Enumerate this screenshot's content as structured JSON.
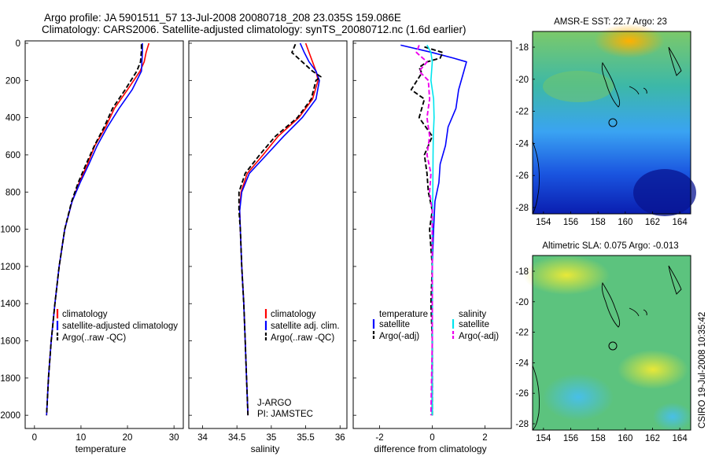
{
  "title": {
    "line1": "Argo profile: JA 5901511_57 13-Jul-2008 20080718_208 23.035S 159.086E",
    "line2": "Climatology: CARS2006. Satellite-adjusted climatology: synTS_20080712.nc (1.6d earlier)"
  },
  "colors": {
    "climatology": "#ff0000",
    "satellite": "#0000ff",
    "argo": "#000000",
    "sat_salinity": "#00e5ee",
    "argo_salinity": "#ee00ee"
  },
  "depth_axis": {
    "ylim": [
      0,
      2050
    ],
    "ticks": [
      "0",
      "200",
      "400",
      "600",
      "800",
      "1000",
      "1200",
      "1400",
      "1600",
      "1800",
      "2000"
    ]
  },
  "panels": {
    "temperature": {
      "xlabel": "temperature",
      "xticks": [
        "0",
        "10",
        "20",
        "30"
      ],
      "legend": [
        "climatology",
        "satellite-adjusted climatology",
        "Argo(..raw -QC)"
      ]
    },
    "salinity": {
      "xlabel": "salinity",
      "xticks": [
        "34",
        "34.5",
        "35",
        "35.5",
        "36"
      ],
      "legend": [
        "climatology",
        "satellite adj. clim.",
        "Argo(..raw -QC)"
      ],
      "note1": "J-ARGO",
      "note2": "PI: JAMSTEC"
    },
    "difference": {
      "xlabel": "difference from climatology",
      "xticks": [
        "-2",
        "0",
        "2"
      ],
      "legend_left_head": "temperature",
      "legend_right_head": "salinity",
      "legend_left": [
        "satellite",
        "Argo(-adj)"
      ],
      "legend_right": [
        "satellite",
        "Argo(-adj)"
      ]
    }
  },
  "chart_data": [
    {
      "type": "line",
      "title": "",
      "xlabel": "temperature",
      "ylabel": "",
      "xlim": [
        -2,
        32
      ],
      "ylim": [
        2050,
        0
      ],
      "series": [
        {
          "name": "climatology",
          "color": "#ff0000",
          "style": "solid",
          "points": [
            [
              24.6,
              0
            ],
            [
              24,
              50
            ],
            [
              23.6,
              100
            ],
            [
              22.7,
              150
            ],
            [
              20,
              250
            ],
            [
              17.2,
              350
            ],
            [
              15.3,
              450
            ],
            [
              13,
              550
            ],
            [
              11.4,
              650
            ],
            [
              9.6,
              750
            ],
            [
              8.1,
              850
            ],
            [
              6.5,
              1000
            ],
            [
              5.3,
              1200
            ],
            [
              4.4,
              1400
            ],
            [
              3.6,
              1600
            ],
            [
              3,
              1800
            ],
            [
              2.6,
              2000
            ]
          ]
        },
        {
          "name": "satellite-adjusted climatology",
          "color": "#0000ff",
          "style": "solid",
          "points": [
            [
              23.2,
              0
            ],
            [
              23.2,
              50
            ],
            [
              23.1,
              100
            ],
            [
              23,
              150
            ],
            [
              21,
              250
            ],
            [
              18.2,
              350
            ],
            [
              15.7,
              450
            ],
            [
              13.5,
              550
            ],
            [
              11.7,
              650
            ],
            [
              9.8,
              750
            ],
            [
              8.1,
              850
            ],
            [
              6.5,
              1000
            ],
            [
              5.3,
              1200
            ],
            [
              4.4,
              1400
            ],
            [
              3.6,
              1600
            ],
            [
              3,
              1800
            ],
            [
              2.6,
              2000
            ]
          ]
        },
        {
          "name": "Argo(..raw -QC)",
          "color": "#000000",
          "style": "dashed",
          "points": [
            [
              23,
              5
            ],
            [
              23,
              40
            ],
            [
              22.8,
              100
            ],
            [
              22,
              150
            ],
            [
              19.5,
              250
            ],
            [
              16.8,
              350
            ],
            [
              15,
              450
            ],
            [
              12.9,
              550
            ],
            [
              11.1,
              650
            ],
            [
              9.4,
              750
            ],
            [
              8,
              850
            ],
            [
              6.5,
              1000
            ],
            [
              5.3,
              1200
            ],
            [
              4.4,
              1400
            ],
            [
              3.6,
              1600
            ],
            [
              3,
              1800
            ],
            [
              2.6,
              2000
            ]
          ]
        }
      ]
    },
    {
      "type": "line",
      "title": "",
      "xlabel": "salinity",
      "ylabel": "",
      "xlim": [
        33.8,
        36.1
      ],
      "ylim": [
        2050,
        0
      ],
      "series": [
        {
          "name": "climatology",
          "color": "#ff0000",
          "style": "solid",
          "points": [
            [
              35.5,
              0
            ],
            [
              35.55,
              50
            ],
            [
              35.6,
              100
            ],
            [
              35.65,
              150
            ],
            [
              35.68,
              200
            ],
            [
              35.6,
              300
            ],
            [
              35.4,
              400
            ],
            [
              35.1,
              500
            ],
            [
              34.88,
              600
            ],
            [
              34.65,
              700
            ],
            [
              34.56,
              800
            ],
            [
              34.54,
              900
            ],
            [
              34.55,
              1000
            ],
            [
              34.57,
              1200
            ],
            [
              34.6,
              1400
            ],
            [
              34.62,
              1600
            ],
            [
              34.64,
              1800
            ],
            [
              34.66,
              2000
            ]
          ]
        },
        {
          "name": "satellite adj. clim.",
          "color": "#0000ff",
          "style": "solid",
          "points": [
            [
              35.42,
              0
            ],
            [
              35.48,
              50
            ],
            [
              35.55,
              100
            ],
            [
              35.65,
              150
            ],
            [
              35.7,
              200
            ],
            [
              35.65,
              300
            ],
            [
              35.45,
              400
            ],
            [
              35.18,
              500
            ],
            [
              34.93,
              600
            ],
            [
              34.68,
              700
            ],
            [
              34.57,
              800
            ],
            [
              34.54,
              900
            ],
            [
              34.55,
              1000
            ],
            [
              34.57,
              1200
            ],
            [
              34.6,
              1400
            ],
            [
              34.62,
              1600
            ],
            [
              34.64,
              1800
            ],
            [
              34.66,
              2000
            ]
          ]
        },
        {
          "name": "Argo(..raw -QC)",
          "color": "#000000",
          "style": "dashed",
          "points": [
            [
              35.35,
              5
            ],
            [
              35.3,
              50
            ],
            [
              35.45,
              100
            ],
            [
              35.6,
              150
            ],
            [
              35.72,
              180
            ],
            [
              35.65,
              200
            ],
            [
              35.58,
              300
            ],
            [
              35.38,
              400
            ],
            [
              35.06,
              500
            ],
            [
              34.83,
              600
            ],
            [
              34.62,
              700
            ],
            [
              34.53,
              800
            ],
            [
              34.53,
              900
            ],
            [
              34.55,
              1000
            ],
            [
              34.57,
              1200
            ],
            [
              34.6,
              1400
            ],
            [
              34.62,
              1600
            ],
            [
              34.64,
              1800
            ],
            [
              34.66,
              2000
            ]
          ]
        }
      ]
    },
    {
      "type": "line",
      "title": "",
      "xlabel": "difference from climatology",
      "ylabel": "",
      "xlim": [
        -3,
        3
      ],
      "ylim": [
        2050,
        0
      ],
      "series": [
        {
          "name": "temperature satellite",
          "color": "#0000ff",
          "style": "solid",
          "points": [
            [
              -1.2,
              10
            ],
            [
              0,
              50
            ],
            [
              0.8,
              80
            ],
            [
              1.3,
              100
            ],
            [
              1.2,
              150
            ],
            [
              1,
              250
            ],
            [
              0.9,
              350
            ],
            [
              0.6,
              450
            ],
            [
              0.5,
              550
            ],
            [
              0.3,
              650
            ],
            [
              0.25,
              750
            ],
            [
              0.1,
              850
            ],
            [
              0.05,
              1000
            ],
            [
              0,
              1200
            ],
            [
              0,
              1400
            ],
            [
              0,
              1600
            ],
            [
              0,
              1800
            ],
            [
              0,
              2000
            ]
          ]
        },
        {
          "name": "temperature Argo(-adj)",
          "color": "#000000",
          "style": "dashed",
          "points": [
            [
              -0.3,
              20
            ],
            [
              0.4,
              50
            ],
            [
              0.3,
              80
            ],
            [
              -0.2,
              100
            ],
            [
              -0.5,
              130
            ],
            [
              -0.4,
              160
            ],
            [
              -0.8,
              250
            ],
            [
              -0.3,
              300
            ],
            [
              -0.5,
              400
            ],
            [
              0,
              500
            ],
            [
              -0.3,
              600
            ],
            [
              -0.2,
              700
            ],
            [
              -0.15,
              800
            ],
            [
              0,
              900
            ],
            [
              -0.1,
              1000
            ],
            [
              0,
              1200
            ],
            [
              -0.05,
              1400
            ],
            [
              0,
              1600
            ],
            [
              0,
              1800
            ],
            [
              0,
              2000
            ]
          ]
        },
        {
          "name": "salinity satellite",
          "color": "#00e5ee",
          "style": "solid",
          "points": [
            [
              -0.2,
              10
            ],
            [
              -0.05,
              50
            ],
            [
              0,
              100
            ],
            [
              -0.05,
              200
            ],
            [
              0.05,
              300
            ],
            [
              0.07,
              400
            ],
            [
              0.04,
              500
            ],
            [
              0.03,
              600
            ],
            [
              0.02,
              800
            ],
            [
              0,
              1000
            ],
            [
              0,
              1200
            ],
            [
              0,
              1600
            ],
            [
              0,
              2000
            ]
          ]
        },
        {
          "name": "salinity Argo(-adj)",
          "color": "#ee00ee",
          "style": "dashed",
          "points": [
            [
              -0.5,
              10
            ],
            [
              -0.6,
              50
            ],
            [
              -0.2,
              100
            ],
            [
              -0.5,
              150
            ],
            [
              -0.15,
              200
            ],
            [
              -0.1,
              300
            ],
            [
              -0.2,
              400
            ],
            [
              -0.1,
              500
            ],
            [
              -0.2,
              600
            ],
            [
              -0.05,
              700
            ],
            [
              -0.1,
              800
            ],
            [
              0,
              900
            ],
            [
              0,
              1200
            ],
            [
              0,
              1600
            ],
            [
              -0.05,
              2000
            ]
          ]
        }
      ]
    }
  ],
  "maps": {
    "xticks": [
      "154",
      "156",
      "158",
      "160",
      "162",
      "164"
    ],
    "yticks": [
      "-18",
      "-20",
      "-22",
      "-24",
      "-26",
      "-28"
    ],
    "sst": {
      "title": "AMSR-E SST: 22.7 Argo: 23"
    },
    "sla": {
      "title": "Altimetric SLA: 0.075 Argo: -0.013"
    },
    "stamp": "CSIRO 19-Jul-2008 10:35:42"
  }
}
